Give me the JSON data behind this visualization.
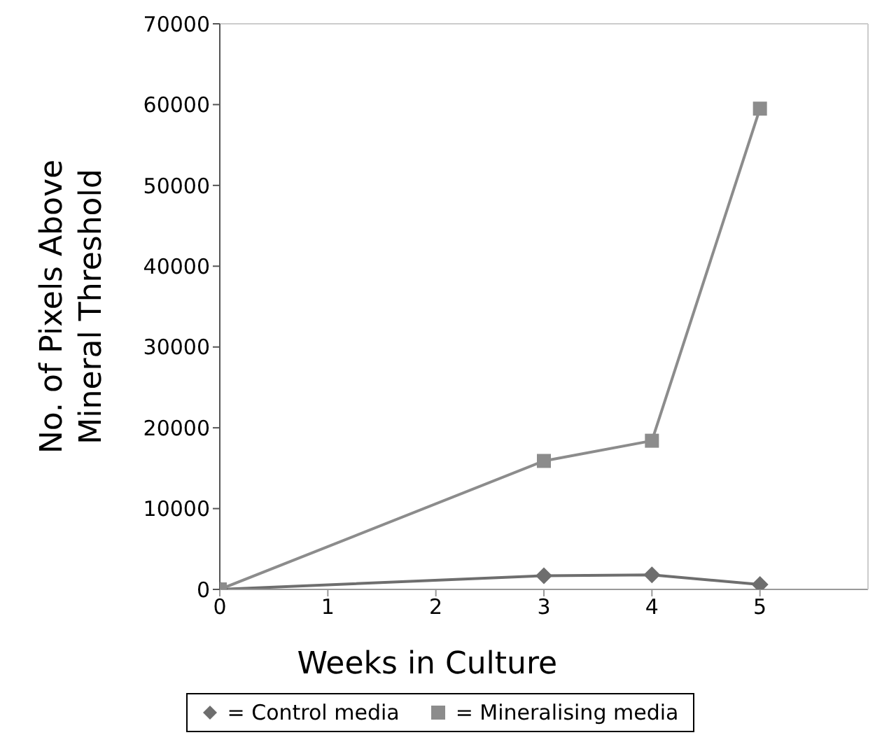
{
  "chart_data": {
    "type": "line",
    "xlabel": "Weeks in Culture",
    "ylabel": "No. of Pixels Above Mineral Threshold",
    "xlim": [
      0,
      6
    ],
    "xticks": [
      0,
      1,
      2,
      3,
      4,
      5
    ],
    "ylim": [
      0,
      70000
    ],
    "yticks": [
      0,
      10000,
      20000,
      30000,
      40000,
      50000,
      60000,
      70000
    ],
    "legend": "bottom",
    "line_style": "solid",
    "series": [
      {
        "name": "= Control media",
        "color": "#6e6e6e",
        "marker": "diamond",
        "x": [
          0,
          3,
          4,
          5
        ],
        "values": [
          0,
          1700,
          1800,
          600
        ]
      },
      {
        "name": "= Mineralising media",
        "color": "#8c8c8c",
        "marker": "square",
        "x": [
          0,
          3,
          4,
          5
        ],
        "values": [
          0,
          15900,
          18400,
          59500
        ]
      }
    ]
  }
}
